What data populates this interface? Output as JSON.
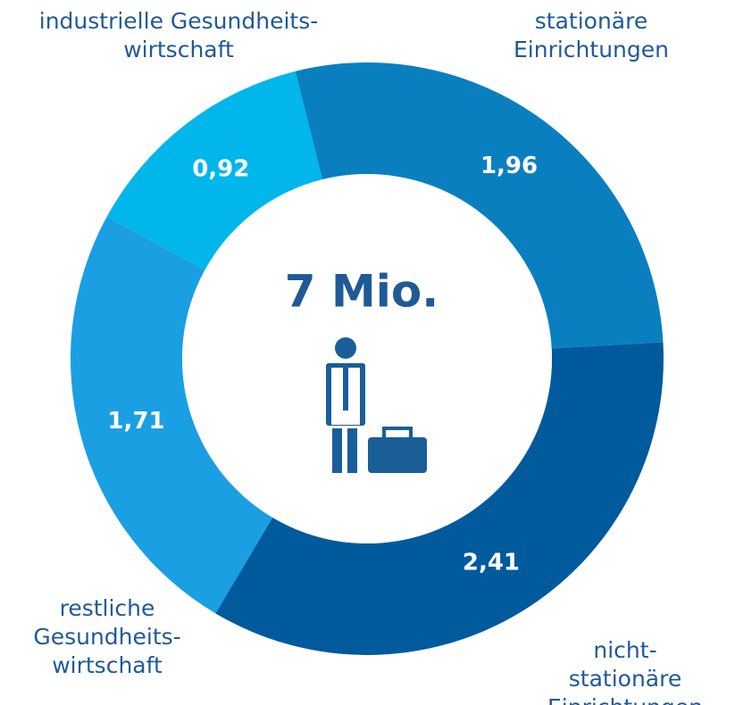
{
  "chart_data": {
    "type": "donut",
    "center_label": "7 Mio.",
    "categories": [
      "stationäre\nEinrichtungen",
      "nicht-stationäre\nEinrichtungen",
      "restliche\nGesundheits-\nwirtschaft",
      "industrielle Gesundheits-\nwirtschaft"
    ],
    "values": [
      1.96,
      2.41,
      1.71,
      0.92
    ],
    "value_labels": [
      "1,96",
      "2,41",
      "1,71",
      "0,92"
    ],
    "colors": [
      "#0a7fc0",
      "#005a9c",
      "#1a9fe2",
      "#00b6ea"
    ]
  }
}
